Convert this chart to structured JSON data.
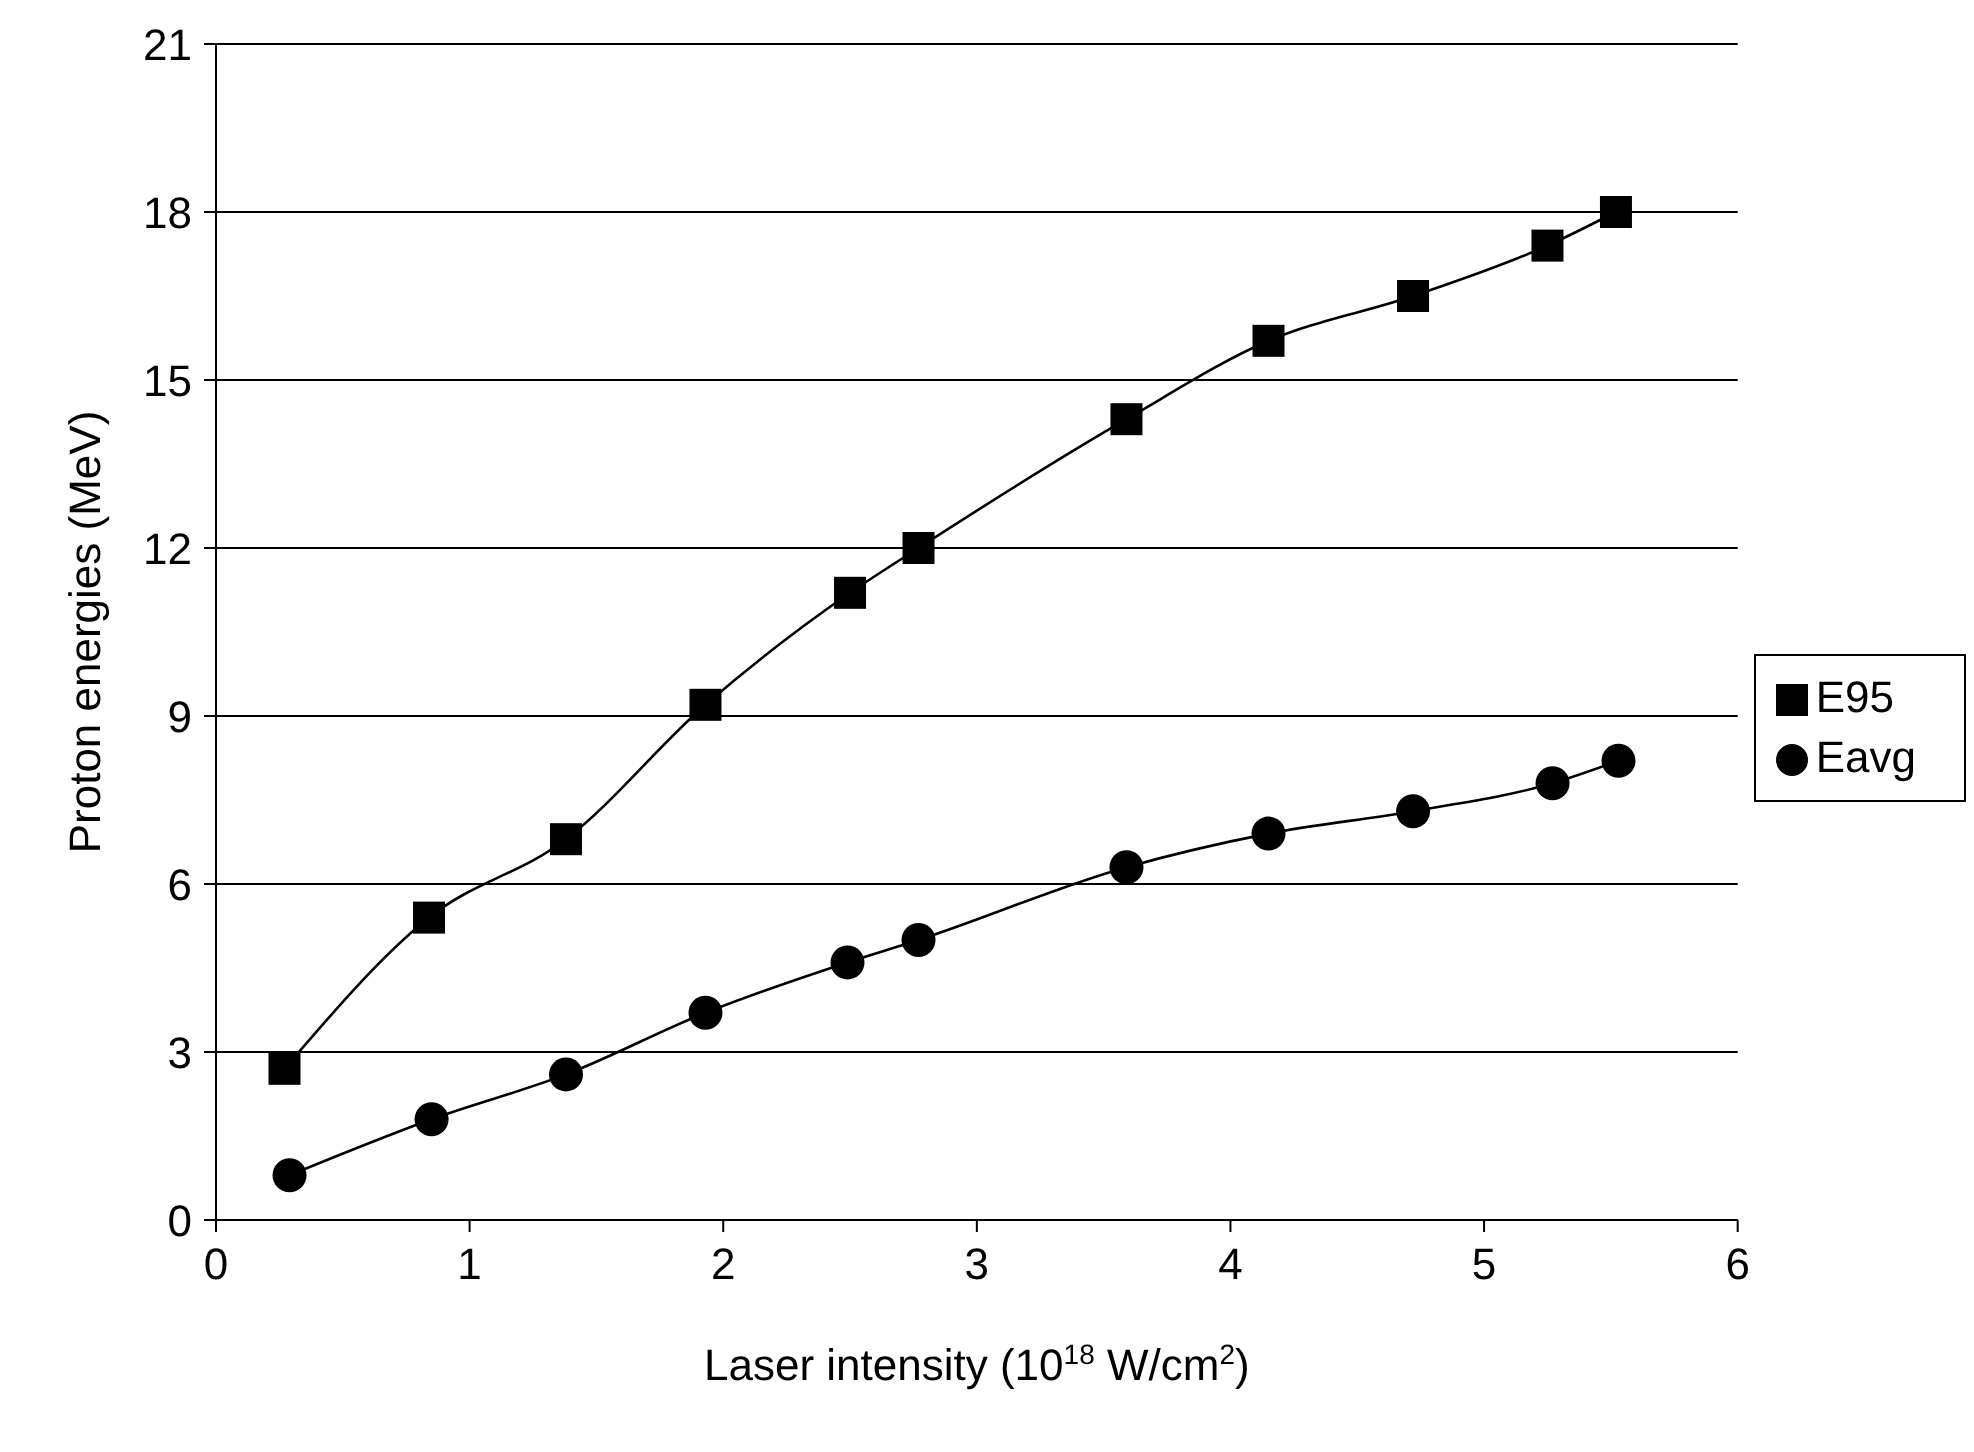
{
  "chart_data": {
    "type": "line",
    "xlabel": "Laser intensity (10$^{18}$ W/cm$^{2}$)",
    "ylabel": "Proton energies (MeV)",
    "xlim": [
      0,
      6
    ],
    "xticks": [
      0,
      1,
      2,
      3,
      4,
      5,
      6
    ],
    "ylim": [
      0,
      21
    ],
    "yticks": [
      0,
      3,
      6,
      9,
      12,
      15,
      18,
      21
    ],
    "grid": "y",
    "legend": "right",
    "series": [
      {
        "name": "E95",
        "color": "#000000",
        "marker": "square",
        "x": [
          0.27,
          0.84,
          1.38,
          1.93,
          2.5,
          2.77,
          3.59,
          4.15,
          4.72,
          5.25,
          5.52
        ],
        "values": [
          2.7,
          5.4,
          6.8,
          9.2,
          11.2,
          12.0,
          14.3,
          15.7,
          16.5,
          17.4,
          18.0
        ]
      },
      {
        "name": "Eavg",
        "color": "#000000",
        "marker": "circle",
        "x": [
          0.29,
          0.85,
          1.38,
          1.93,
          2.49,
          2.77,
          3.59,
          4.15,
          4.72,
          5.27,
          5.53
        ],
        "values": [
          0.8,
          1.8,
          2.6,
          3.7,
          4.6,
          5.0,
          6.3,
          6.9,
          7.3,
          7.8,
          8.2
        ]
      }
    ]
  }
}
